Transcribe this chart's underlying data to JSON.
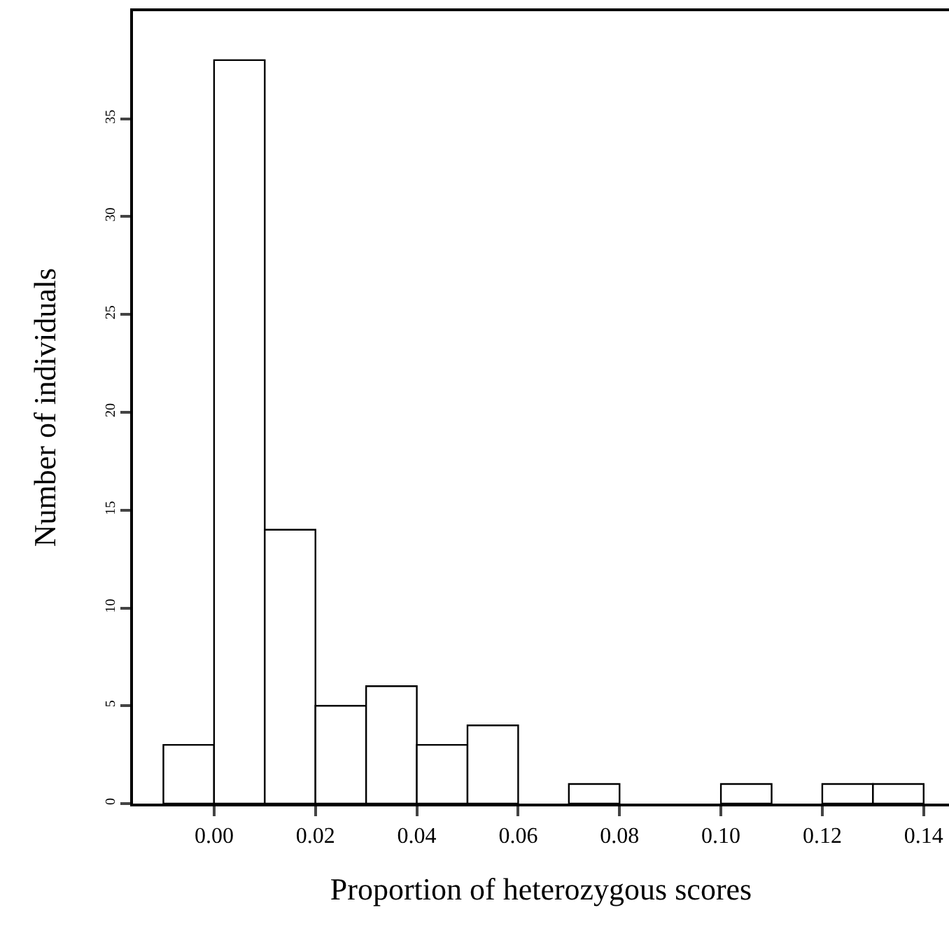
{
  "chart_data": {
    "type": "histogram",
    "xlabel": "Proportion of heterozygous scores",
    "ylabel": "Number of individuals",
    "bins": [
      -0.01,
      0.0,
      0.01,
      0.02,
      0.03,
      0.04,
      0.05,
      0.06,
      0.07,
      0.08,
      0.09,
      0.1,
      0.11,
      0.12,
      0.13,
      0.14
    ],
    "values": [
      3,
      38,
      14,
      5,
      6,
      3,
      4,
      0,
      1,
      0,
      0,
      1,
      0,
      1,
      1
    ],
    "color": "#ffffff",
    "xlim": [
      -0.016,
      0.145
    ],
    "xticks": [
      {
        "value": 0,
        "label": "0.00"
      },
      {
        "value": 0.02,
        "label": "0.02"
      },
      {
        "value": 0.04,
        "label": "0.04"
      },
      {
        "value": 0.06,
        "label": "0.06"
      },
      {
        "value": 0.08,
        "label": "0.08"
      },
      {
        "value": 0.1,
        "label": "0.10"
      },
      {
        "value": 0.12,
        "label": "0.12"
      },
      {
        "value": 0.14,
        "label": "0.14"
      }
    ],
    "ylim": [
      0,
      40.5
    ],
    "yticks": [
      0,
      5,
      10,
      15,
      20,
      25,
      30,
      35
    ],
    "grid": false,
    "legend": false
  }
}
